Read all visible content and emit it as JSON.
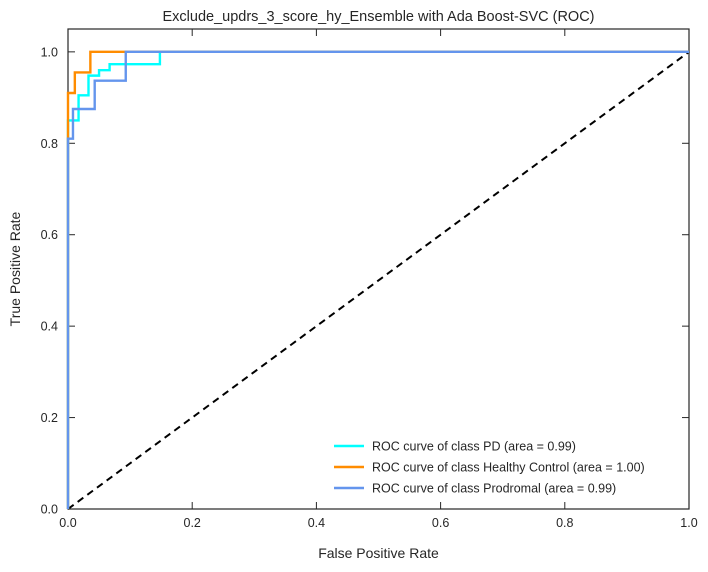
{
  "chart_data": {
    "type": "line",
    "title": "Exclude_updrs_3_score_hy_Ensemble with Ada Boost-SVC (ROC)",
    "xlabel": "False Positive Rate",
    "ylabel": "True Positive Rate",
    "xlim": [
      0.0,
      1.0
    ],
    "ylim": [
      0.0,
      1.05
    ],
    "xticks": [
      "0.0",
      "0.2",
      "0.4",
      "0.6",
      "0.8",
      "1.0"
    ],
    "yticks": [
      "0.0",
      "0.2",
      "0.4",
      "0.6",
      "0.8",
      "1.0"
    ],
    "grid": false,
    "legend_position": "lower-right",
    "series": [
      {
        "name": "ROC curve of class PD (area = 0.99)",
        "color": "#00ffff",
        "points": [
          [
            0.0,
            0.0
          ],
          [
            0.0,
            0.85
          ],
          [
            0.017,
            0.85
          ],
          [
            0.017,
            0.905
          ],
          [
            0.033,
            0.905
          ],
          [
            0.033,
            0.948
          ],
          [
            0.05,
            0.948
          ],
          [
            0.05,
            0.96
          ],
          [
            0.067,
            0.96
          ],
          [
            0.067,
            0.973
          ],
          [
            0.148,
            0.973
          ],
          [
            0.148,
            1.0
          ],
          [
            1.0,
            1.0
          ]
        ]
      },
      {
        "name": "ROC curve of class Healthy Control (area = 1.00)",
        "color": "#ff8c00",
        "points": [
          [
            0.0,
            0.0
          ],
          [
            0.0,
            0.91
          ],
          [
            0.011,
            0.91
          ],
          [
            0.011,
            0.955
          ],
          [
            0.036,
            0.955
          ],
          [
            0.036,
            1.0
          ],
          [
            1.0,
            1.0
          ]
        ]
      },
      {
        "name": "ROC curve of class Prodromal (area = 0.99)",
        "color": "#6495ed",
        "points": [
          [
            0.0,
            0.0
          ],
          [
            0.0,
            0.81
          ],
          [
            0.008,
            0.81
          ],
          [
            0.008,
            0.875
          ],
          [
            0.043,
            0.875
          ],
          [
            0.043,
            0.937
          ],
          [
            0.093,
            0.937
          ],
          [
            0.093,
            1.0
          ],
          [
            1.0,
            1.0
          ]
        ]
      }
    ],
    "reference_line": {
      "points": [
        [
          0.0,
          0.0
        ],
        [
          1.0,
          1.0
        ]
      ],
      "color": "#000000",
      "style": "dashed"
    }
  }
}
